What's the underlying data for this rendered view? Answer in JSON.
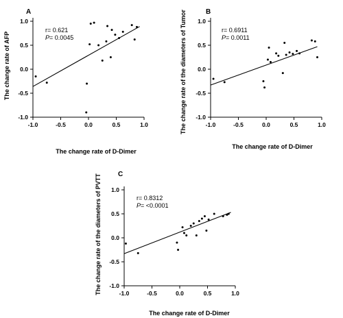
{
  "chart_data": [
    {
      "type": "scatter",
      "panel": "A",
      "xlabel": "The change rate of D-Dimer",
      "ylabel": "The change rate of AFP",
      "xlim": [
        -1.0,
        1.0
      ],
      "ylim": [
        -1.0,
        1.0
      ],
      "xticks": [
        -1.0,
        -0.5,
        0.0,
        0.5,
        1.0
      ],
      "yticks": [
        -1.0,
        -0.5,
        0.0,
        0.5,
        1.0
      ],
      "xtick_labels": [
        "-1.0",
        "-0.5",
        "0.0",
        "0.5",
        "1.0"
      ],
      "ytick_labels": [
        "-1.0",
        "-0.5",
        "0.0",
        "0.5",
        "1.0"
      ],
      "stat_r": "r= 0.621",
      "stat_p_label": "P",
      "stat_p_value": "= 0.0045",
      "points": {
        "x": [
          -0.95,
          -0.75,
          -0.04,
          -0.03,
          0.02,
          0.04,
          0.1,
          0.18,
          0.25,
          0.32,
          0.34,
          0.4,
          0.42,
          0.48,
          0.55,
          0.62,
          0.78,
          0.83,
          0.87
        ],
        "y": [
          -0.15,
          -0.28,
          -0.9,
          -0.3,
          0.52,
          0.95,
          0.97,
          0.5,
          0.18,
          0.58,
          0.9,
          0.25,
          0.82,
          0.72,
          0.65,
          0.78,
          0.92,
          0.62,
          0.88
        ]
      },
      "fit": {
        "x": [
          -1.0,
          0.92
        ],
        "y": [
          -0.36,
          0.89
        ]
      }
    },
    {
      "type": "scatter",
      "panel": "B",
      "xlabel": "The change rate of D-Dimer",
      "ylabel": "The change rate of the diameters of Tumor",
      "xlim": [
        -1.0,
        1.0
      ],
      "ylim": [
        -1.0,
        1.0
      ],
      "xticks": [
        -1.0,
        -0.5,
        0.0,
        0.5,
        1.0
      ],
      "yticks": [
        -1.0,
        -0.5,
        0.0,
        0.5,
        1.0
      ],
      "xtick_labels": [
        "-1.0",
        "-0.5",
        "0.0",
        "0.5",
        "1.0"
      ],
      "ytick_labels": [
        "-1.0",
        "-0.5",
        "0.0",
        "0.5",
        "1.0"
      ],
      "stat_r": "r= 0.6911",
      "stat_p_label": "P",
      "stat_p_value": "= 0.0011",
      "points": {
        "x": [
          -0.95,
          -0.75,
          -0.05,
          -0.03,
          0.03,
          0.05,
          0.08,
          0.18,
          0.22,
          0.3,
          0.33,
          0.36,
          0.42,
          0.48,
          0.55,
          0.6,
          0.82,
          0.88,
          0.92
        ],
        "y": [
          -0.2,
          -0.27,
          -0.25,
          -0.38,
          0.2,
          0.45,
          0.15,
          0.33,
          0.28,
          -0.08,
          0.55,
          0.3,
          0.35,
          0.32,
          0.38,
          0.33,
          0.6,
          0.58,
          0.25
        ]
      },
      "fit": {
        "x": [
          -1.0,
          0.92
        ],
        "y": [
          -0.33,
          0.47
        ]
      }
    },
    {
      "type": "scatter",
      "panel": "C",
      "xlabel": "The change rate of D-Dimer",
      "ylabel": "The change rate of the diameters of PVTT",
      "xlim": [
        -1.0,
        1.0
      ],
      "ylim": [
        -1.0,
        1.0
      ],
      "xticks": [
        -1.0,
        -0.5,
        0.0,
        0.5,
        1.0
      ],
      "yticks": [
        -1.0,
        -0.5,
        0.0,
        0.5,
        1.0
      ],
      "xtick_labels": [
        "-1.0",
        "-0.5",
        "0.0",
        "0.5",
        "1.0"
      ],
      "ytick_labels": [
        "-1.0",
        "-0.5",
        "0.0",
        "0.5",
        "1.0"
      ],
      "stat_r": "r= 0.8312",
      "stat_p_label": "P",
      "stat_p_value": "= <0.0001",
      "points": {
        "x": [
          -0.97,
          -0.75,
          -0.05,
          -0.03,
          0.05,
          0.08,
          0.12,
          0.2,
          0.25,
          0.3,
          0.35,
          0.4,
          0.45,
          0.48,
          0.52,
          0.62,
          0.78,
          0.85,
          0.88
        ],
        "y": [
          -0.12,
          -0.32,
          -0.1,
          -0.25,
          0.22,
          0.1,
          0.05,
          0.25,
          0.3,
          0.05,
          0.35,
          0.4,
          0.45,
          0.15,
          0.38,
          0.5,
          0.45,
          0.48,
          0.5
        ]
      },
      "fit": {
        "x": [
          -1.0,
          0.92
        ],
        "y": [
          -0.33,
          0.53
        ]
      }
    }
  ]
}
